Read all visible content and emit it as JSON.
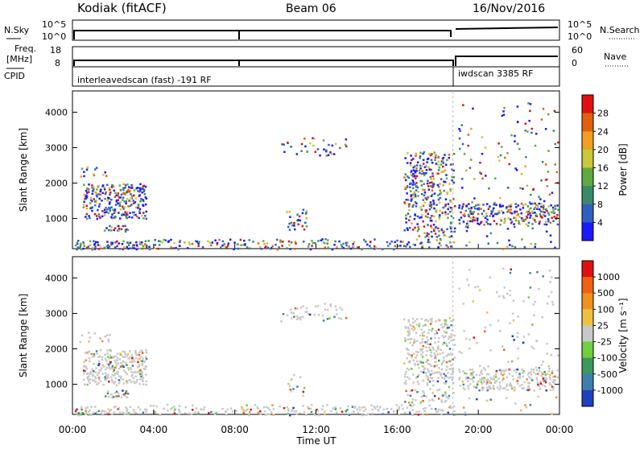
{
  "header": {
    "title": "Kodiak (fitACF)",
    "beam": "Beam 06",
    "date": "16/Nov/2016"
  },
  "status_panels": {
    "nsky_label": "N.Sky",
    "nsky_ticks": [
      "10^5",
      "10^0"
    ],
    "nsearch_label": "N.Search",
    "nsearch_ticks": [
      "10^5",
      "10^0"
    ],
    "freq_label_1": "Freq.",
    "freq_label_2": "[MHz]",
    "freq_ticks": [
      "18",
      "8"
    ],
    "nave_label": "Nave",
    "nave_ticks": [
      "60",
      "0"
    ],
    "cpid_label": "CPID",
    "cpid_left": "interleavedscan (fast) -191 RF",
    "cpid_right": "iwdscan 3385 RF"
  },
  "chart_data": [
    {
      "type": "heatmap",
      "name_on_plot": "Power",
      "ylabel": "Slant Range [km]",
      "xlabel": "",
      "ylim": [
        150,
        4600
      ],
      "xlim": [
        0,
        24
      ],
      "yticks": [
        "1000",
        "2000",
        "3000",
        "4000"
      ],
      "colorbar_label": "Power [dB]",
      "colorbar_ticks": [
        "4",
        "8",
        "12",
        "16",
        "20",
        "24",
        "28"
      ],
      "colorbar_colors": [
        "#1a1aff",
        "#2f5fbf",
        "#3a8a6a",
        "#5faa3f",
        "#c8c83a",
        "#f0a020",
        "#e06010",
        "#e01010"
      ]
    },
    {
      "type": "heatmap",
      "name_on_plot": "Velocity",
      "ylabel": "Slant Range [km]",
      "xlabel": "Time UT",
      "ylim": [
        150,
        4600
      ],
      "xlim": [
        0,
        24
      ],
      "yticks": [
        "1000",
        "2000",
        "3000",
        "4000"
      ],
      "xticks": [
        "00:00",
        "04:00",
        "08:00",
        "12:00",
        "16:00",
        "20:00",
        "00:00"
      ],
      "colorbar_label": "Velocity [m s⁻¹]",
      "colorbar_ticks": [
        "1000",
        "500",
        "100",
        "25",
        "-25",
        "-100",
        "-500",
        "-1000"
      ],
      "colorbar_colors": [
        "#2040c0",
        "#3f7fb0",
        "#3a9a5a",
        "#70d040",
        "#c8c8c8",
        "#f0c040",
        "#f09020",
        "#f06010",
        "#e01010"
      ]
    }
  ],
  "scatter_regions": [
    {
      "t0": 0.1,
      "t1": 3.8,
      "r0": 150,
      "r1": 400,
      "density": 0.55
    },
    {
      "t0": 0.5,
      "t1": 3.6,
      "r0": 1000,
      "r1": 2000,
      "density": 0.6
    },
    {
      "t0": 1.5,
      "t1": 2.8,
      "r0": 650,
      "r1": 850,
      "density": 0.7
    },
    {
      "t0": 0.3,
      "t1": 1.8,
      "r0": 2200,
      "r1": 2500,
      "density": 0.25
    },
    {
      "t0": 3.8,
      "t1": 18.8,
      "r0": 150,
      "r1": 450,
      "density": 0.4
    },
    {
      "t0": 10.5,
      "t1": 11.5,
      "r0": 700,
      "r1": 1300,
      "density": 0.35
    },
    {
      "t0": 10.2,
      "t1": 13.5,
      "r0": 2800,
      "r1": 3300,
      "density": 0.2
    },
    {
      "t0": 16.3,
      "t1": 18.8,
      "r0": 500,
      "r1": 2900,
      "density": 0.4
    },
    {
      "t0": 19.0,
      "t1": 23.9,
      "r0": 850,
      "r1": 1450,
      "density": 0.55
    },
    {
      "t0": 19.0,
      "t1": 23.9,
      "r0": 150,
      "r1": 4300,
      "density": 0.05
    }
  ]
}
